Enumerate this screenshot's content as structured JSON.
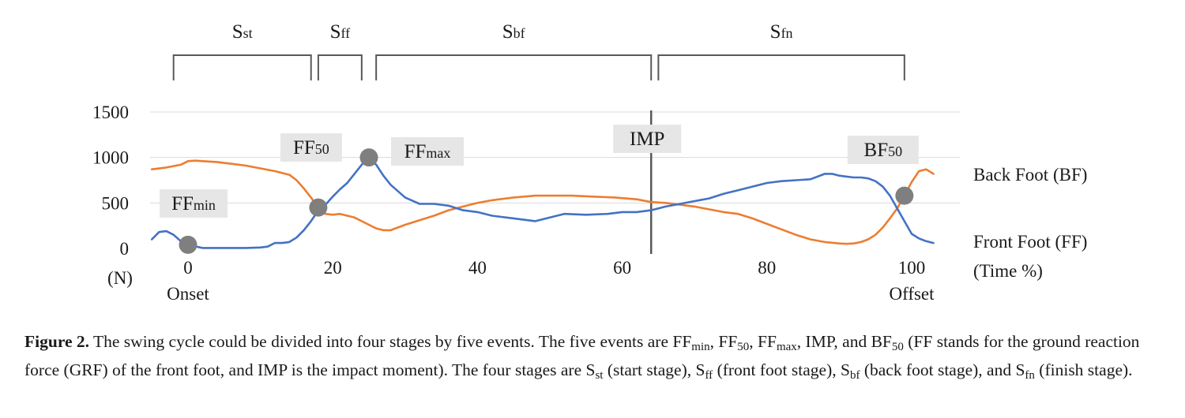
{
  "chart_data": {
    "type": "line",
    "x_unit_label": "(Time %)",
    "y_unit_label": "(N)",
    "xlim": [
      -5,
      103
    ],
    "ylim": [
      0,
      1500
    ],
    "x_ticks": [
      0,
      20,
      40,
      60,
      80,
      100
    ],
    "y_ticks": [
      0,
      500,
      1000,
      1500
    ],
    "x_tick_sublabels": {
      "0": "Onset",
      "100": "Offset"
    },
    "grid": "horizontal",
    "series": [
      {
        "name": "Back Foot (BF)",
        "color": "#ed7d31",
        "x": [
          -5,
          -3,
          -1,
          0,
          1,
          2,
          4,
          6,
          8,
          10,
          12,
          14,
          15,
          16,
          17,
          18,
          19,
          20,
          21,
          22,
          23,
          24,
          25,
          26,
          27,
          28,
          30,
          32,
          34,
          36,
          38,
          40,
          42,
          45,
          48,
          50,
          53,
          56,
          59,
          62,
          64,
          66,
          68,
          70,
          72,
          74,
          76,
          78,
          80,
          82,
          84,
          86,
          88,
          90,
          91,
          92,
          93,
          94,
          95,
          96,
          97,
          98,
          99,
          100,
          101,
          102,
          103
        ],
        "y": [
          870,
          890,
          920,
          960,
          965,
          960,
          950,
          930,
          910,
          880,
          850,
          810,
          750,
          660,
          560,
          450,
          380,
          370,
          380,
          360,
          340,
          300,
          260,
          220,
          200,
          200,
          260,
          310,
          360,
          420,
          460,
          500,
          530,
          560,
          580,
          580,
          580,
          570,
          560,
          540,
          510,
          500,
          480,
          460,
          430,
          400,
          380,
          330,
          270,
          210,
          150,
          100,
          70,
          55,
          50,
          55,
          70,
          100,
          150,
          230,
          330,
          440,
          580,
          730,
          850,
          870,
          820
        ]
      },
      {
        "name": "Front Foot (FF)",
        "color": "#4472c4",
        "x": [
          -5,
          -4,
          -3,
          -2,
          -1,
          0,
          2,
          4,
          6,
          8,
          10,
          11,
          12,
          13,
          14,
          15,
          16,
          17,
          18,
          19,
          20,
          21,
          22,
          23,
          24,
          25,
          26,
          27,
          28,
          30,
          32,
          34,
          36,
          38,
          40,
          42,
          45,
          48,
          50,
          52,
          55,
          58,
          60,
          62,
          64,
          66,
          68,
          70,
          72,
          74,
          76,
          78,
          80,
          82,
          84,
          86,
          87,
          88,
          89,
          90,
          91,
          92,
          93,
          94,
          95,
          96,
          97,
          98,
          99,
          100,
          101,
          102,
          103
        ],
        "y": [
          100,
          180,
          190,
          150,
          80,
          40,
          5,
          5,
          5,
          5,
          10,
          20,
          60,
          60,
          70,
          120,
          200,
          300,
          420,
          480,
          570,
          650,
          720,
          820,
          920,
          1000,
          920,
          800,
          700,
          560,
          490,
          490,
          470,
          420,
          400,
          360,
          330,
          300,
          340,
          380,
          370,
          380,
          400,
          400,
          420,
          460,
          490,
          520,
          550,
          600,
          640,
          680,
          720,
          740,
          750,
          760,
          790,
          820,
          820,
          800,
          790,
          780,
          780,
          770,
          740,
          680,
          580,
          440,
          300,
          160,
          110,
          80,
          60
        ]
      }
    ],
    "events": [
      {
        "label_main": "FF",
        "label_sub": "min",
        "x": 0,
        "y": 40
      },
      {
        "label_main": "FF",
        "label_sub": "50",
        "x": 18,
        "y": 450
      },
      {
        "label_main": "FF",
        "label_sub": "max",
        "x": 25,
        "y": 1000
      },
      {
        "label_main": "IMP",
        "label_sub": "",
        "x": 64
      },
      {
        "label_main": "BF",
        "label_sub": "50",
        "x": 99,
        "y": 580
      }
    ],
    "stages": [
      {
        "main": "S",
        "sub": "st",
        "x_start": -2,
        "x_end": 17
      },
      {
        "main": "S",
        "sub": "ff",
        "x_start": 18,
        "x_end": 24
      },
      {
        "main": "S",
        "sub": "bf",
        "x_start": 26,
        "x_end": 64
      },
      {
        "main": "S",
        "sub": "fn",
        "x_start": 65,
        "x_end": 99
      }
    ]
  },
  "caption": {
    "label": "Figure 2.",
    "text_1": " The swing cycle could be divided into four stages by five events. The five events are FF",
    "s1": "min",
    "text_2": ", FF",
    "s2": "50",
    "text_3": ", FF",
    "s3": "max",
    "text_4": ", IMP, and BF",
    "s4": "50",
    "text_5": " (FF stands for the ground reaction force (GRF) of the front foot, and IMP is the impact moment). The four stages are S",
    "s5": "st",
    "text_6": " (start stage), S",
    "s6": "ff",
    "text_7": " (front foot stage), S",
    "s7": "bf",
    "text_8": " (back foot stage), and S",
    "s8": "fn",
    "text_9": " (finish stage)."
  }
}
